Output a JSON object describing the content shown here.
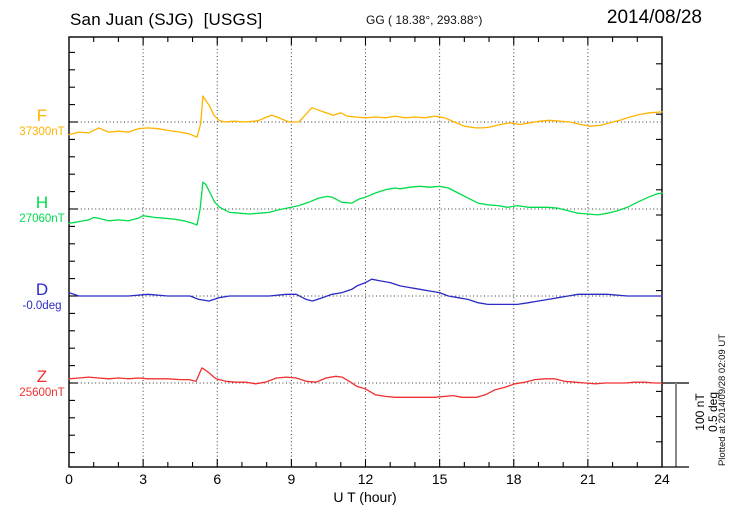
{
  "header": {
    "title": "San Juan (SJG)  [USGS]",
    "coords": "GG ( 18.38°, 293.88°)",
    "date": "2014/08/28"
  },
  "axis": {
    "xlabel": "U T (hour)"
  },
  "scale_bar": {
    "line1": "100 nT",
    "line2": "0.5 deg"
  },
  "footer": {
    "plotted_note": "Plotted at 2014/09/28 02:09 UT"
  },
  "chart_data": {
    "type": "line",
    "title": "San Juan (SJG) [USGS] magnetogram for 2014/08/28",
    "xlabel": "U T (hour)",
    "xlim": [
      0,
      24
    ],
    "x_ticks": [
      0,
      3,
      6,
      9,
      12,
      15,
      18,
      21,
      24
    ],
    "grid": "dotted vertical gridlines every 3 hours; dotted horizontal baseline per channel",
    "legend_position": "left channel labels",
    "scale": {
      "bar_nT": 100,
      "bar_deg": 0.5
    },
    "series": [
      {
        "id": "F",
        "label": "F",
        "baseline_label": "37300nT",
        "baseline_value": 37300,
        "unit": "nT",
        "color": "#FFB300",
        "points": [
          [
            0,
            -15
          ],
          [
            0.4,
            -12
          ],
          [
            0.8,
            -13
          ],
          [
            1.2,
            -7
          ],
          [
            1.6,
            -12
          ],
          [
            2,
            -11
          ],
          [
            2.4,
            -12
          ],
          [
            2.8,
            -8
          ],
          [
            3.2,
            -7
          ],
          [
            3.6,
            -8
          ],
          [
            4,
            -10
          ],
          [
            4.5,
            -12
          ],
          [
            4.85,
            -14
          ],
          [
            5.18,
            -18
          ],
          [
            5.33,
            -2
          ],
          [
            5.42,
            31
          ],
          [
            5.5,
            27
          ],
          [
            5.67,
            20
          ],
          [
            5.87,
            8
          ],
          [
            6.07,
            2
          ],
          [
            6.27,
            0
          ],
          [
            6.7,
            1
          ],
          [
            7.1,
            0
          ],
          [
            7.5,
            1
          ],
          [
            7.7,
            2
          ],
          [
            8,
            6
          ],
          [
            8.2,
            8
          ],
          [
            8.5,
            5
          ],
          [
            8.9,
            0
          ],
          [
            9.3,
            0
          ],
          [
            9.55,
            8
          ],
          [
            9.83,
            17
          ],
          [
            10.1,
            14
          ],
          [
            10.4,
            11
          ],
          [
            10.7,
            8
          ],
          [
            11,
            11
          ],
          [
            11.25,
            7
          ],
          [
            11.6,
            6
          ],
          [
            12,
            5
          ],
          [
            12.4,
            6
          ],
          [
            12.8,
            5
          ],
          [
            13.2,
            7
          ],
          [
            13.6,
            5
          ],
          [
            14,
            6
          ],
          [
            14.4,
            5
          ],
          [
            14.8,
            7
          ],
          [
            15.2,
            5
          ],
          [
            15.6,
            0
          ],
          [
            16,
            -5
          ],
          [
            16.45,
            -7
          ],
          [
            16.75,
            -7
          ],
          [
            17.05,
            -6
          ],
          [
            17.45,
            -3
          ],
          [
            17.85,
            -1
          ],
          [
            18.25,
            -3
          ],
          [
            18.65,
            -1
          ],
          [
            19.05,
            1
          ],
          [
            19.45,
            2
          ],
          [
            19.85,
            1
          ],
          [
            20.3,
            0
          ],
          [
            20.7,
            -3
          ],
          [
            21.1,
            -5
          ],
          [
            21.5,
            -4
          ],
          [
            21.9,
            -1
          ],
          [
            22.3,
            2
          ],
          [
            22.7,
            6
          ],
          [
            23.1,
            9
          ],
          [
            23.5,
            11
          ],
          [
            24,
            12
          ]
        ]
      },
      {
        "id": "H",
        "label": "H",
        "baseline_label": "27060nT",
        "baseline_value": 27060,
        "unit": "nT",
        "color": "#00DC4B",
        "points": [
          [
            0,
            -17
          ],
          [
            0.4,
            -15
          ],
          [
            0.8,
            -13
          ],
          [
            1,
            -10
          ],
          [
            1.2,
            -11
          ],
          [
            1.6,
            -14
          ],
          [
            2,
            -13
          ],
          [
            2.4,
            -14
          ],
          [
            2.8,
            -11
          ],
          [
            3,
            -8
          ],
          [
            3.45,
            -10
          ],
          [
            3.85,
            -11
          ],
          [
            4.25,
            -12
          ],
          [
            4.65,
            -14
          ],
          [
            5,
            -17
          ],
          [
            5.18,
            -19
          ],
          [
            5.3,
            -1
          ],
          [
            5.42,
            32
          ],
          [
            5.54,
            29
          ],
          [
            5.71,
            19
          ],
          [
            5.9,
            8
          ],
          [
            6.1,
            2
          ],
          [
            6.3,
            -1
          ],
          [
            6.5,
            -4
          ],
          [
            6.9,
            -5
          ],
          [
            7.3,
            -6
          ],
          [
            7.7,
            -5
          ],
          [
            8.1,
            -4
          ],
          [
            8.5,
            -1
          ],
          [
            8.8,
            1
          ],
          [
            9.3,
            4
          ],
          [
            9.7,
            8
          ],
          [
            10.1,
            13
          ],
          [
            10.45,
            15
          ],
          [
            10.65,
            14
          ],
          [
            11.05,
            8
          ],
          [
            11.45,
            7
          ],
          [
            11.75,
            12
          ],
          [
            12,
            14
          ],
          [
            12.4,
            19
          ],
          [
            12.8,
            23
          ],
          [
            13.2,
            25
          ],
          [
            13.4,
            24
          ],
          [
            13.8,
            26
          ],
          [
            14.2,
            27
          ],
          [
            14.6,
            26
          ],
          [
            15,
            27
          ],
          [
            15.35,
            25
          ],
          [
            15.75,
            19
          ],
          [
            16.15,
            13
          ],
          [
            16.55,
            7
          ],
          [
            16.95,
            5
          ],
          [
            17.35,
            4
          ],
          [
            17.75,
            2
          ],
          [
            18.15,
            4
          ],
          [
            18.6,
            2
          ],
          [
            19,
            2
          ],
          [
            19.4,
            2
          ],
          [
            19.8,
            1
          ],
          [
            20.2,
            -2
          ],
          [
            20.6,
            -5
          ],
          [
            21,
            -6
          ],
          [
            21.4,
            -7
          ],
          [
            21.8,
            -5
          ],
          [
            22.2,
            -2
          ],
          [
            22.6,
            2
          ],
          [
            23,
            8
          ],
          [
            23.45,
            14
          ],
          [
            23.8,
            18
          ],
          [
            24,
            19
          ]
        ]
      },
      {
        "id": "D",
        "label": "D",
        "baseline_label": "-0.0deg",
        "baseline_value": -0.0,
        "unit": "deg",
        "color": "#2B2BC4",
        "points": [
          [
            0,
            0.02
          ],
          [
            0.4,
            0
          ],
          [
            0.8,
            0
          ],
          [
            1.6,
            0
          ],
          [
            2.4,
            0
          ],
          [
            3.2,
            0.01
          ],
          [
            4,
            0
          ],
          [
            4.9,
            0
          ],
          [
            5.25,
            -0.02
          ],
          [
            5.67,
            -0.03
          ],
          [
            6.07,
            -0.01
          ],
          [
            6.5,
            0
          ],
          [
            7.3,
            0
          ],
          [
            8.1,
            0
          ],
          [
            8.8,
            0.01
          ],
          [
            9.2,
            0.01
          ],
          [
            9.6,
            -0.02
          ],
          [
            9.85,
            -0.03
          ],
          [
            10.25,
            -0.01
          ],
          [
            10.65,
            0.01
          ],
          [
            11.05,
            0.02
          ],
          [
            11.45,
            0.04
          ],
          [
            11.65,
            0.06
          ],
          [
            12,
            0.08
          ],
          [
            12.25,
            0.1
          ],
          [
            12.6,
            0.09
          ],
          [
            13,
            0.08
          ],
          [
            13.4,
            0.06
          ],
          [
            13.8,
            0.05
          ],
          [
            14.2,
            0.04
          ],
          [
            14.6,
            0.03
          ],
          [
            15,
            0.02
          ],
          [
            15.35,
            0
          ],
          [
            15.75,
            -0.01
          ],
          [
            16.15,
            -0.02
          ],
          [
            16.55,
            -0.04
          ],
          [
            16.95,
            -0.05
          ],
          [
            17.35,
            -0.05
          ],
          [
            17.75,
            -0.05
          ],
          [
            18.15,
            -0.05
          ],
          [
            18.6,
            -0.04
          ],
          [
            19,
            -0.03
          ],
          [
            19.4,
            -0.02
          ],
          [
            19.8,
            -0.01
          ],
          [
            20.2,
            0
          ],
          [
            20.6,
            0.01
          ],
          [
            21,
            0.01
          ],
          [
            21.8,
            0.01
          ],
          [
            22.6,
            0
          ],
          [
            23.4,
            0
          ],
          [
            24,
            0
          ]
        ]
      },
      {
        "id": "Z",
        "label": "Z",
        "baseline_label": "25600nT",
        "baseline_value": 25600,
        "unit": "nT",
        "color": "#F03030",
        "points": [
          [
            0,
            5
          ],
          [
            0.4,
            6
          ],
          [
            0.8,
            7
          ],
          [
            1.2,
            6
          ],
          [
            1.6,
            5
          ],
          [
            2,
            6
          ],
          [
            2.4,
            5
          ],
          [
            2.8,
            6
          ],
          [
            3.2,
            5
          ],
          [
            3.6,
            5
          ],
          [
            4,
            5
          ],
          [
            4.5,
            4
          ],
          [
            4.85,
            4
          ],
          [
            5.14,
            2
          ],
          [
            5.26,
            10
          ],
          [
            5.38,
            18
          ],
          [
            5.54,
            15
          ],
          [
            5.75,
            10
          ],
          [
            5.95,
            5
          ],
          [
            6.35,
            2
          ],
          [
            6.75,
            1
          ],
          [
            7.15,
            1
          ],
          [
            7.55,
            -1
          ],
          [
            7.95,
            1
          ],
          [
            8.4,
            6
          ],
          [
            8.8,
            7
          ],
          [
            9.2,
            6
          ],
          [
            9.6,
            2
          ],
          [
            10,
            1
          ],
          [
            10.4,
            6
          ],
          [
            10.8,
            8
          ],
          [
            11.05,
            7
          ],
          [
            11.4,
            1
          ],
          [
            11.65,
            -4
          ],
          [
            12,
            -7
          ],
          [
            12.4,
            -14
          ],
          [
            12.8,
            -16
          ],
          [
            13.2,
            -17
          ],
          [
            14,
            -17
          ],
          [
            14.8,
            -17
          ],
          [
            15.55,
            -15
          ],
          [
            15.9,
            -17
          ],
          [
            16.5,
            -17
          ],
          [
            16.85,
            -14
          ],
          [
            17.25,
            -8
          ],
          [
            17.65,
            -5
          ],
          [
            18.05,
            -1
          ],
          [
            18.45,
            1
          ],
          [
            18.85,
            4
          ],
          [
            19.25,
            5
          ],
          [
            19.65,
            5
          ],
          [
            20.05,
            2
          ],
          [
            20.5,
            1
          ],
          [
            20.9,
            0
          ],
          [
            21.3,
            -1
          ],
          [
            21.7,
            0
          ],
          [
            22.1,
            0
          ],
          [
            22.5,
            0
          ],
          [
            22.9,
            1
          ],
          [
            23.3,
            1
          ],
          [
            23.7,
            0
          ],
          [
            24,
            0
          ]
        ]
      }
    ]
  }
}
